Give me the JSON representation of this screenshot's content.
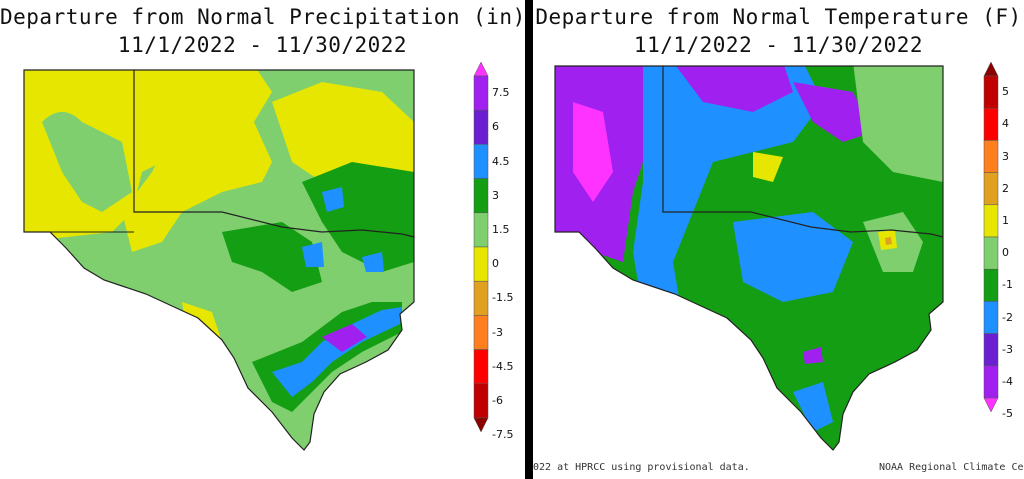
{
  "precip": {
    "title_line1": "Departure from Normal Precipitation (in)",
    "title_line2": "11/1/2022 - 11/30/2022",
    "colorbar": {
      "labels": [
        "7.5",
        "6",
        "4.5",
        "3",
        "1.5",
        "0",
        "-1.5",
        "-3",
        "-4.5",
        "-6",
        "-7.5"
      ],
      "colors": [
        "#ff33ff",
        "#a020f0",
        "#6a1fd0",
        "#1e90ff",
        "#149e14",
        "#7fcf6f",
        "#e6e600",
        "#e0a020",
        "#ff7f1e",
        "#ff0000",
        "#c00000",
        "#8b0000"
      ]
    }
  },
  "temp": {
    "title_line1": "Departure from Normal Temperature (F)",
    "title_line2": "11/1/2022 - 11/30/2022",
    "colorbar": {
      "labels": [
        "5",
        "4",
        "3",
        "2",
        "1",
        "0",
        "-1",
        "-2",
        "-3",
        "-4",
        "-5"
      ],
      "colors": [
        "#8b0000",
        "#c00000",
        "#ff0000",
        "#ff7f1e",
        "#e0a020",
        "#e6e600",
        "#7fcf6f",
        "#149e14",
        "#1e90ff",
        "#6a1fd0",
        "#a020f0",
        "#ff33ff"
      ]
    }
  },
  "footer": {
    "left": "022 at HPRCC using provisional data.",
    "right": "NOAA Regional Climate Ce"
  },
  "legend_colors": {
    "yellow": "#e6e600",
    "light_green": "#7fcf6f",
    "green": "#149e14",
    "blue": "#1e90ff",
    "purple": "#a020f0",
    "magenta": "#ff33ff"
  }
}
